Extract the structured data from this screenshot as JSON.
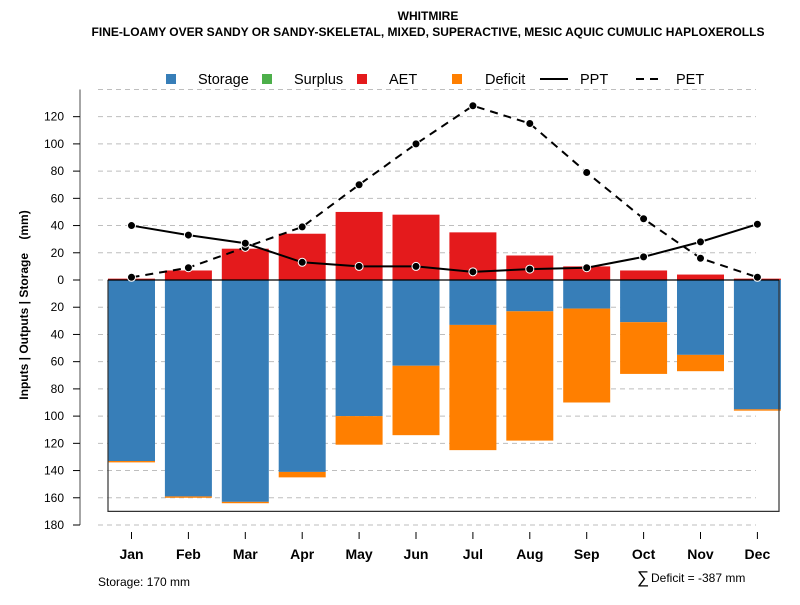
{
  "chart_data": {
    "type": "bar",
    "title": "WHITMIRE",
    "subtitle": "FINE-LOAMY OVER SANDY OR SANDY-SKELETAL, MIXED, SUPERACTIVE, MESIC AQUIC CUMULIC HAPLOXEROLLS",
    "xlabel": "",
    "ylabel": "Inputs | Outputs | Storage    (mm)",
    "ylim": [
      -180,
      140
    ],
    "yticks": [
      120,
      100,
      80,
      60,
      40,
      20,
      0,
      -20,
      -40,
      -60,
      -80,
      -100,
      -120,
      -140,
      -160,
      -180
    ],
    "ytick_labels": [
      "120",
      "100",
      "80",
      "60",
      "40",
      "20",
      "0",
      "20",
      "40",
      "60",
      "80",
      "100",
      "120",
      "140",
      "160",
      "180"
    ],
    "grid": true,
    "legend_position": "top",
    "categories": [
      "Jan",
      "Feb",
      "Mar",
      "Apr",
      "May",
      "Jun",
      "Jul",
      "Aug",
      "Sep",
      "Oct",
      "Nov",
      "Dec"
    ],
    "legend": [
      {
        "name": "Storage",
        "kind": "box",
        "color": "#377EB8"
      },
      {
        "name": "Surplus",
        "kind": "box",
        "color": "#4DAF4A"
      },
      {
        "name": "AET",
        "kind": "box",
        "color": "#E41A1C"
      },
      {
        "name": "Deficit",
        "kind": "box",
        "color": "#FF7F00"
      },
      {
        "name": "PPT",
        "kind": "solid-line",
        "color": "#000000"
      },
      {
        "name": "PET",
        "kind": "dashed-line",
        "color": "#000000"
      }
    ],
    "series": [
      {
        "name": "AET",
        "type": "bar-up",
        "color": "#E41A1C",
        "values": [
          1,
          7,
          23,
          34,
          50,
          48,
          35,
          18,
          10,
          7,
          4,
          1
        ]
      },
      {
        "name": "Surplus",
        "type": "bar-up",
        "color": "#4DAF4A",
        "values": [
          0,
          0,
          0,
          0,
          0,
          0,
          0,
          0,
          0,
          0,
          0,
          0
        ]
      },
      {
        "name": "Storage",
        "type": "bar-down",
        "color": "#377EB8",
        "values": [
          133,
          159,
          163,
          141,
          100,
          63,
          33,
          23,
          21,
          31,
          55,
          95
        ]
      },
      {
        "name": "Deficit",
        "type": "bar-down-stacked",
        "color": "#FF7F00",
        "values": [
          1,
          1,
          1,
          4,
          21,
          51,
          92,
          95,
          69,
          38,
          12,
          1
        ]
      },
      {
        "name": "PPT",
        "type": "line",
        "style": "solid",
        "color": "#000000",
        "values": [
          40,
          33,
          27,
          13,
          10,
          10,
          6,
          8,
          9,
          17,
          28,
          41
        ]
      },
      {
        "name": "PET",
        "type": "line",
        "style": "dashed",
        "color": "#000000",
        "values": [
          2,
          9,
          24,
          39,
          70,
          100,
          128,
          115,
          79,
          45,
          16,
          2
        ]
      }
    ],
    "storage_capacity": 170,
    "annotations": {
      "storage": "Storage: 170 mm",
      "deficit_sum": "Deficit = -387 mm",
      "sum_symbol": "∑"
    }
  }
}
